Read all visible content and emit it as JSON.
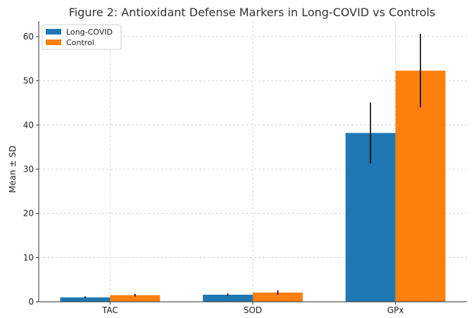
{
  "chart_data": {
    "type": "bar",
    "title": "Figure 2: Antioxidant Defense Markers in Long-COVID vs Controls",
    "xlabel": "",
    "ylabel": "Mean ± SD",
    "categories": [
      "TAC",
      "SOD",
      "GPx"
    ],
    "series": [
      {
        "name": "Long-COVID",
        "color": "#1f77b4",
        "values": [
          1.0,
          1.6,
          38.2
        ],
        "errors": [
          0.2,
          0.3,
          6.9
        ]
      },
      {
        "name": "Control",
        "color": "#ff7f0e",
        "values": [
          1.5,
          2.1,
          52.3
        ],
        "errors": [
          0.3,
          0.5,
          8.3
        ]
      }
    ],
    "ylim": [
      0,
      63.5
    ],
    "yticks": [
      0,
      10,
      20,
      30,
      40,
      50,
      60
    ],
    "grid": true,
    "legend": "top-left"
  }
}
